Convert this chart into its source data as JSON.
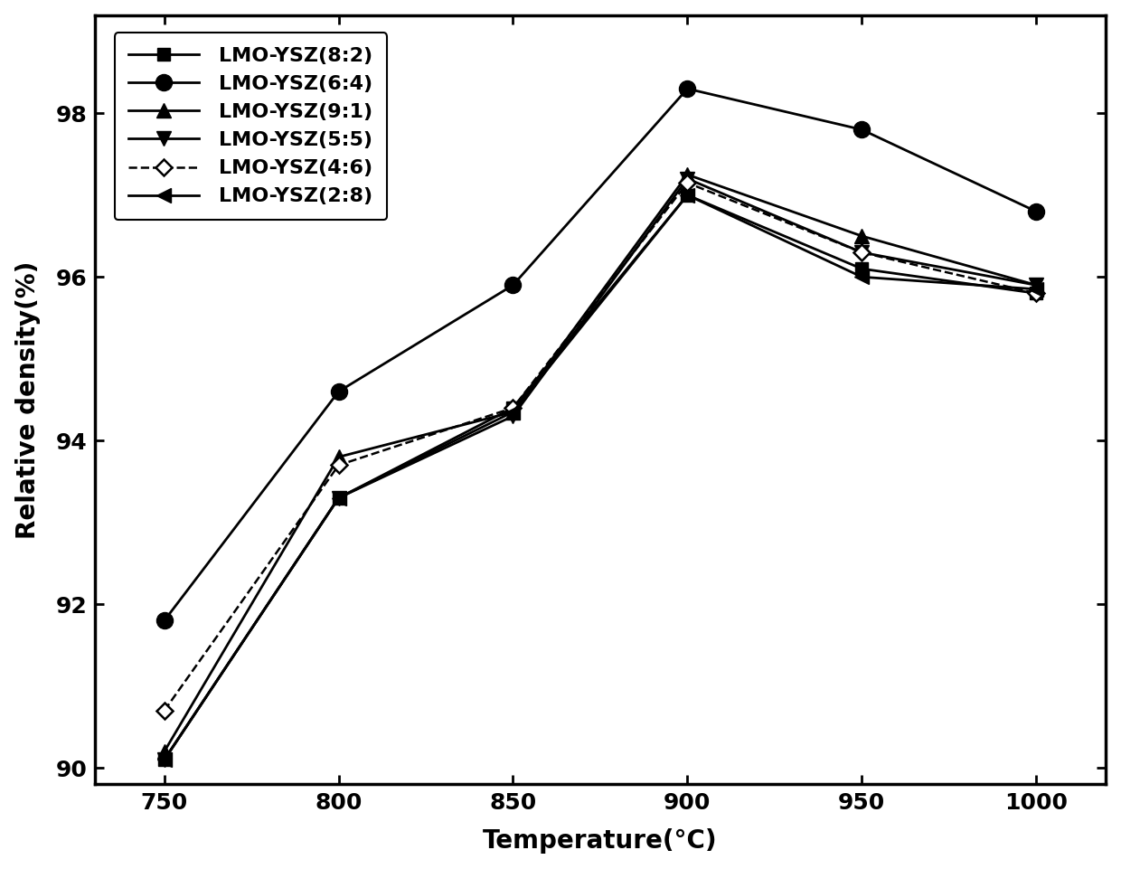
{
  "title": "",
  "xlabel": "Temperature(°C)",
  "ylabel": "Relative density(%)",
  "xlim": [
    730,
    1020
  ],
  "ylim": [
    89.8,
    99.2
  ],
  "xticks": [
    750,
    800,
    850,
    900,
    950,
    1000
  ],
  "yticks": [
    90,
    92,
    94,
    96,
    98
  ],
  "series": [
    {
      "label": "LMO-YSZ(8:2)",
      "x": [
        750,
        800,
        850,
        900,
        950,
        1000
      ],
      "y": [
        90.1,
        93.3,
        94.4,
        97.0,
        96.1,
        95.8
      ],
      "marker": "s",
      "linestyle": "-",
      "markersize": 10,
      "linewidth": 2.0,
      "filled": true
    },
    {
      "label": "LMO-YSZ(6:4)",
      "x": [
        750,
        800,
        850,
        900,
        950,
        1000
      ],
      "y": [
        91.8,
        94.6,
        95.9,
        98.3,
        97.8,
        96.8
      ],
      "marker": "o",
      "linestyle": "-",
      "markersize": 13,
      "linewidth": 2.0,
      "filled": true
    },
    {
      "label": "LMO-YSZ(9:1)",
      "x": [
        750,
        800,
        850,
        900,
        950,
        1000
      ],
      "y": [
        90.2,
        93.8,
        94.35,
        97.25,
        96.5,
        95.9
      ],
      "marker": "^",
      "linestyle": "-",
      "markersize": 11,
      "linewidth": 2.0,
      "filled": true
    },
    {
      "label": "LMO-YSZ(5:5)",
      "x": [
        750,
        800,
        850,
        900,
        950,
        1000
      ],
      "y": [
        90.1,
        93.3,
        94.3,
        97.2,
        96.3,
        95.9
      ],
      "marker": "v",
      "linestyle": "-",
      "markersize": 11,
      "linewidth": 2.0,
      "filled": true
    },
    {
      "label": "LMO-YSZ(4:6)",
      "x": [
        750,
        800,
        850,
        900,
        950,
        1000
      ],
      "y": [
        90.7,
        93.7,
        94.4,
        97.15,
        96.3,
        95.8
      ],
      "marker": "D",
      "linestyle": "--",
      "markersize": 9,
      "linewidth": 1.8,
      "filled": false
    },
    {
      "label": "LMO-YSZ(2:8)",
      "x": [
        750,
        800,
        850,
        900,
        950,
        1000
      ],
      "y": [
        90.1,
        93.3,
        94.35,
        97.0,
        96.0,
        95.85
      ],
      "marker": "<",
      "linestyle": "-",
      "markersize": 11,
      "linewidth": 2.0,
      "filled": true
    }
  ],
  "legend_fontsize": 16,
  "axis_fontsize": 18,
  "tick_fontsize": 16,
  "background_color": "#ffffff",
  "figure_bg": "#ffffff"
}
